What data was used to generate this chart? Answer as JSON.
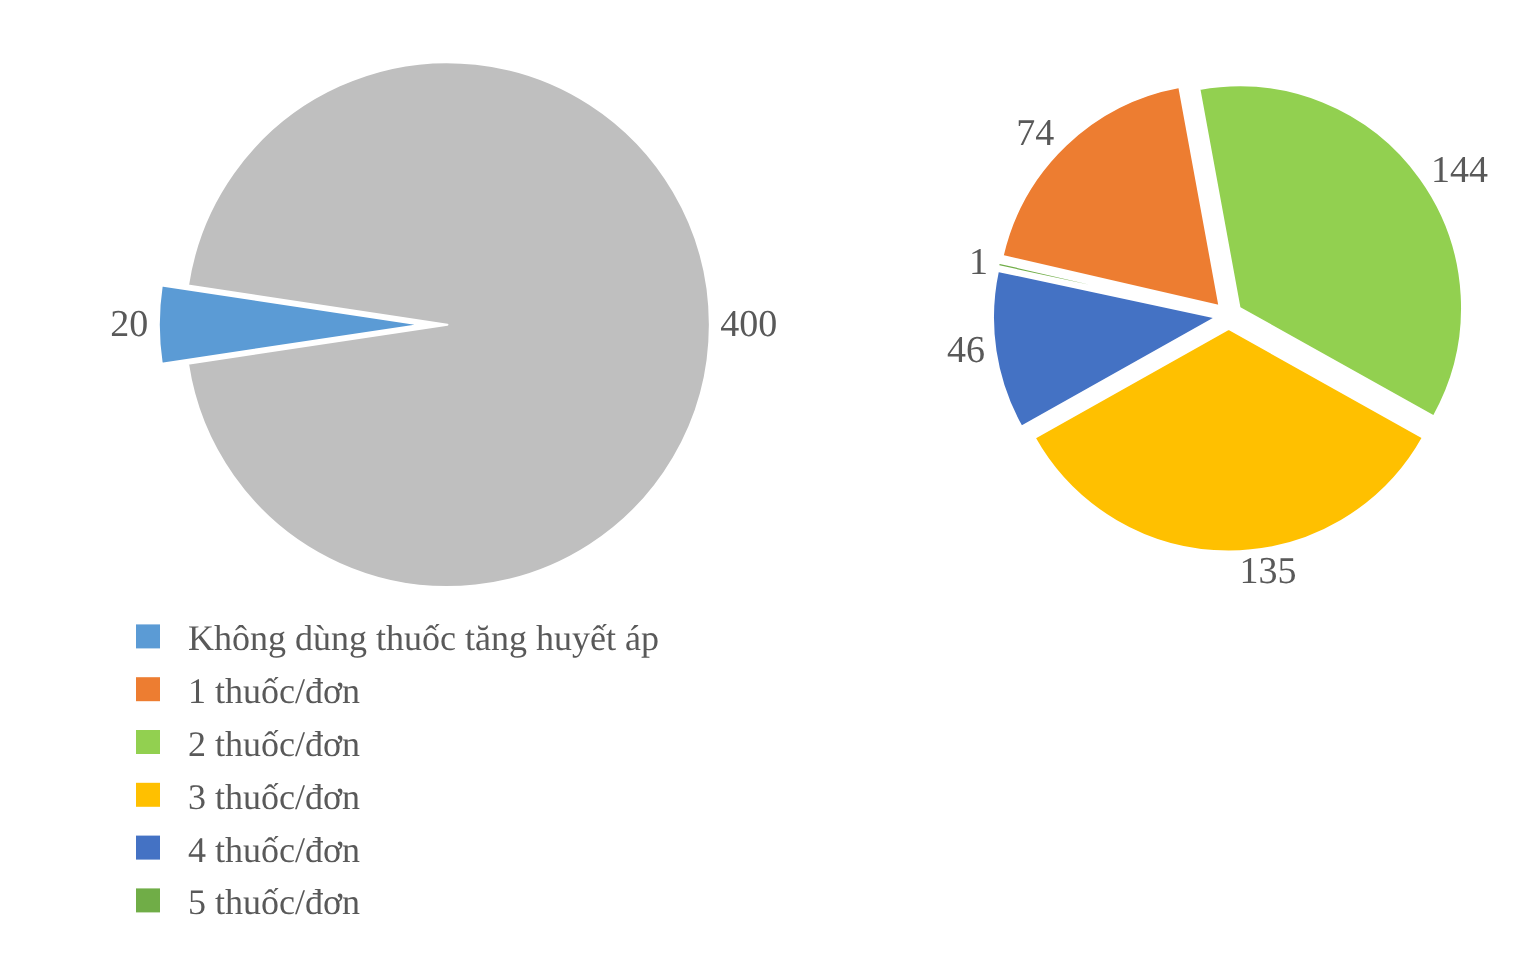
{
  "chart_data": [
    {
      "type": "pie",
      "categories": [
        "Không dùng thuốc tăng huyết áp",
        null
      ],
      "values": [
        20,
        400
      ],
      "colors": [
        "#5b9bd5",
        "#bfbfbf"
      ],
      "data_labels": true,
      "legend": "bottom"
    },
    {
      "type": "pie",
      "categories": [
        "1 thuốc/đơn",
        "2 thuốc/đơn",
        "3 thuốc/đơn",
        "4 thuốc/đơn",
        "5 thuốc/đơn"
      ],
      "values": [
        74,
        144,
        135,
        46,
        1
      ],
      "colors": [
        "#ed7d31",
        "#92d050",
        "#ffc000",
        "#4472c4",
        "#70ad47"
      ],
      "data_labels": true,
      "legend": "bottom"
    }
  ]
}
